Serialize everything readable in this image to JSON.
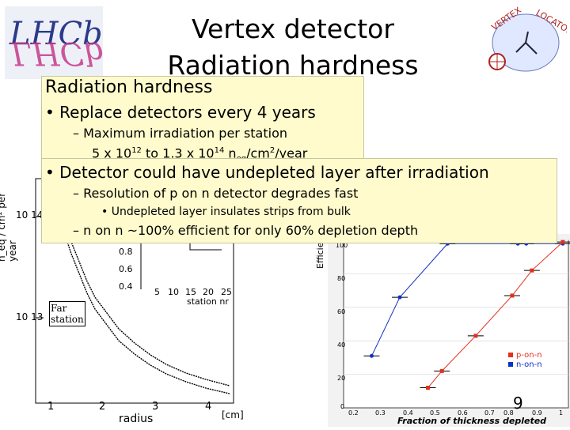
{
  "title": {
    "line1": "Vertex detector",
    "line2": "Radiation hardness"
  },
  "heading": "Radiation hardness",
  "bullets": {
    "b1": "Replace detectors every 4 years",
    "b1_sub1": "Maximum irradiation per station",
    "b1_sub1_line2": {
      "a": "5 x 10",
      "exp1": "12",
      "b": " to 1.3 x 10",
      "exp2": "14",
      "c": " n",
      "sub": "eq",
      "d": "/cm",
      "exp3": "2",
      "e": "/year"
    },
    "b2": "Detector could have undepleted layer after irradiation",
    "b2_sub1": "Resolution of p on n detector degrades fast",
    "b2_sub1_sub": "Undepleted layer insulates strips from bulk",
    "b2_sub2": "n on n ~100% efficient for only 60% depletion depth"
  },
  "left_plot": {
    "ylabel": "n_eq / cm² per year",
    "y_ticks": [
      "10 14",
      "10 13"
    ],
    "x_ticks": [
      "1",
      "2",
      "3",
      "4"
    ],
    "xlabel": "radius",
    "x_unit": "[cm]",
    "annotation": "Far station",
    "inset_y_ticks": [
      "0.8",
      "0.6",
      "0.4"
    ],
    "inset_x_ticks": [
      "5",
      "10",
      "15",
      "20",
      "25"
    ],
    "inset_xlabel": "station nr"
  },
  "right_plot": {
    "ylabel": "Efficiency",
    "y_ticks": [
      "0",
      "20",
      "40",
      "60",
      "80",
      "100"
    ],
    "x_ticks": [
      "0.2",
      "0.3",
      "0.4",
      "0.5",
      "0.6",
      "0.7",
      "0.8",
      "0.9",
      "1"
    ],
    "xlabel": "Fraction of thickness depleted",
    "legend": [
      "p-on-n",
      "n-on-n"
    ],
    "colors": {
      "p_on_n": "#e03020",
      "n_on_n": "#1030c0"
    }
  },
  "chart_data": {
    "type": "line",
    "xlabel": "Fraction of thickness depleted",
    "ylabel": "Efficiency",
    "xlim": [
      0.2,
      1.0
    ],
    "ylim": [
      0,
      100
    ],
    "series": [
      {
        "name": "n-on-n",
        "x": [
          0.3,
          0.4,
          0.57,
          0.82,
          0.85,
          0.98
        ],
        "y": [
          31,
          66,
          98,
          98,
          98,
          98
        ]
      },
      {
        "name": "p-on-n",
        "x": [
          0.5,
          0.55,
          0.67,
          0.8,
          0.87,
          0.98
        ],
        "y": [
          12,
          22,
          43,
          67,
          82,
          99
        ]
      }
    ]
  },
  "page_number": "9"
}
